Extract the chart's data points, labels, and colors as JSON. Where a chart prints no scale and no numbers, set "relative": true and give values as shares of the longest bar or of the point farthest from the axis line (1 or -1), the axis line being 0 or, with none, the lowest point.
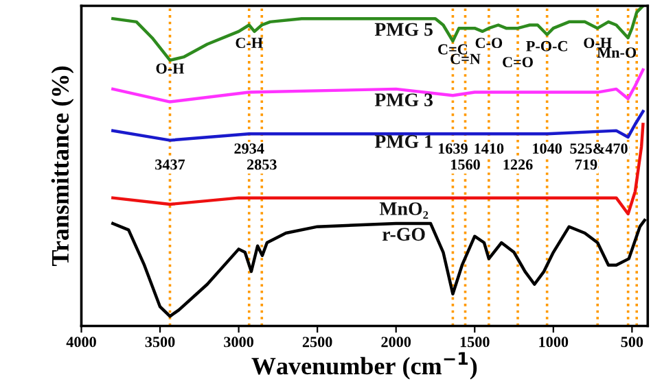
{
  "chart_data": {
    "type": "line",
    "relative": true,
    "xlabel": "Wavenumber (cm$^{−1}$)",
    "ylabel": "Transmittance (%)",
    "xlim": [
      4000,
      400
    ],
    "xticks": [
      4000,
      3500,
      3000,
      2500,
      2000,
      1500,
      1000,
      500
    ],
    "grid": false,
    "legend": false,
    "marker": "none",
    "line_style": "solid",
    "series": [
      {
        "name": "PMG 5",
        "color": "#2e8b1e",
        "x": [
          3800,
          3650,
          3550,
          3437,
          3350,
          3200,
          3000,
          2934,
          2900,
          2853,
          2800,
          2600,
          2000,
          1750,
          1700,
          1639,
          1600,
          1560,
          1500,
          1450,
          1410,
          1350,
          1300,
          1226,
          1150,
          1100,
          1040,
          1000,
          900,
          800,
          719,
          650,
          600,
          525,
          500,
          470,
          430
        ],
        "values": [
          0.96,
          0.95,
          0.9,
          0.83,
          0.84,
          0.88,
          0.92,
          0.94,
          0.92,
          0.94,
          0.95,
          0.96,
          0.96,
          0.96,
          0.94,
          0.89,
          0.93,
          0.93,
          0.93,
          0.92,
          0.93,
          0.94,
          0.93,
          0.93,
          0.94,
          0.94,
          0.91,
          0.93,
          0.95,
          0.95,
          0.93,
          0.95,
          0.94,
          0.9,
          0.93,
          0.98,
          1.0
        ]
      },
      {
        "name": "PMG 3",
        "color": "#ff33ff",
        "x": [
          3800,
          3437,
          2934,
          2000,
          1639,
          1500,
          1040,
          719,
          600,
          525,
          480,
          430
        ],
        "values": [
          0.74,
          0.7,
          0.73,
          0.74,
          0.72,
          0.73,
          0.73,
          0.73,
          0.74,
          0.71,
          0.75,
          0.8
        ]
      },
      {
        "name": "PMG 1",
        "color": "#1a1acc",
        "x": [
          3800,
          3437,
          2934,
          1639,
          1560,
          1040,
          600,
          525,
          480,
          430
        ],
        "values": [
          0.61,
          0.58,
          0.6,
          0.6,
          0.6,
          0.6,
          0.61,
          0.59,
          0.63,
          0.67
        ]
      },
      {
        "name": "MnO₂",
        "color": "#ee1111",
        "x": [
          3800,
          3437,
          3000,
          2000,
          1639,
          1040,
          719,
          600,
          525,
          480,
          440,
          430
        ],
        "values": [
          0.4,
          0.38,
          0.4,
          0.4,
          0.4,
          0.4,
          0.4,
          0.4,
          0.35,
          0.42,
          0.56,
          0.63
        ]
      },
      {
        "name": "r-GO",
        "color": "#000000",
        "x": [
          3800,
          3700,
          3600,
          3500,
          3437,
          3380,
          3200,
          3000,
          2960,
          2920,
          2880,
          2850,
          2820,
          2700,
          2500,
          2000,
          1780,
          1700,
          1639,
          1580,
          1500,
          1440,
          1410,
          1330,
          1250,
          1180,
          1120,
          1060,
          1000,
          900,
          800,
          719,
          650,
          600,
          520,
          450,
          420
        ],
        "values": [
          0.32,
          0.3,
          0.19,
          0.06,
          0.03,
          0.05,
          0.13,
          0.24,
          0.23,
          0.17,
          0.25,
          0.22,
          0.26,
          0.29,
          0.31,
          0.32,
          0.32,
          0.23,
          0.1,
          0.19,
          0.28,
          0.26,
          0.21,
          0.26,
          0.23,
          0.17,
          0.13,
          0.17,
          0.23,
          0.31,
          0.29,
          0.26,
          0.19,
          0.19,
          0.21,
          0.31,
          0.33
        ]
      }
    ],
    "ref_lines": [
      {
        "axis": "x",
        "value": 3437,
        "label": "3437",
        "color": "#ff9900",
        "line_style": "dotted"
      },
      {
        "axis": "x",
        "value": 2934,
        "label": "2934",
        "color": "#ff9900",
        "line_style": "dotted"
      },
      {
        "axis": "x",
        "value": 2853,
        "label": "2853",
        "color": "#ff9900",
        "line_style": "dotted"
      },
      {
        "axis": "x",
        "value": 1639,
        "label": "1639",
        "color": "#ff9900",
        "line_style": "dotted"
      },
      {
        "axis": "x",
        "value": 1560,
        "label": "1560",
        "color": "#ff9900",
        "line_style": "dotted"
      },
      {
        "axis": "x",
        "value": 1410,
        "label": "1410",
        "color": "#ff9900",
        "line_style": "dotted"
      },
      {
        "axis": "x",
        "value": 1226,
        "label": "1226",
        "color": "#ff9900",
        "line_style": "dotted"
      },
      {
        "axis": "x",
        "value": 1040,
        "label": "1040",
        "color": "#ff9900",
        "line_style": "dotted"
      },
      {
        "axis": "x",
        "value": 719,
        "label": "719",
        "color": "#ff9900",
        "line_style": "dotted"
      },
      {
        "axis": "x",
        "value": 525,
        "label": "525&470",
        "color": "#ff9900",
        "line_style": "dotted"
      },
      {
        "axis": "x",
        "value": 470,
        "color": "#ff9900",
        "line_style": "dotted"
      }
    ],
    "annotations": [
      {
        "text": "O-H",
        "x": 3437,
        "y": 0.8
      },
      {
        "text": "C-H",
        "x": 2934,
        "y": 0.88
      },
      {
        "text": "C=C",
        "x": 1639,
        "y": 0.86
      },
      {
        "text": "C=N",
        "x": 1560,
        "y": 0.83
      },
      {
        "text": "C-O",
        "x": 1410,
        "y": 0.88
      },
      {
        "text": "C=O",
        "x": 1226,
        "y": 0.82
      },
      {
        "text": "P-O-C",
        "x": 1040,
        "y": 0.87
      },
      {
        "text": "O-H",
        "x": 719,
        "y": 0.88
      },
      {
        "text": "Mn-O",
        "x": 470,
        "y": 0.85
      }
    ]
  }
}
